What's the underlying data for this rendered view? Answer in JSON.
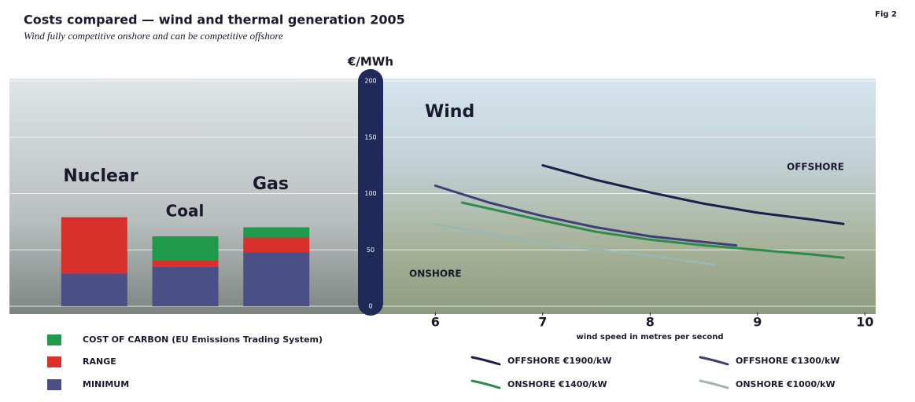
{
  "chart_data": [
    {
      "type": "bar",
      "title": "Costs compared — wind and thermal generation 2005",
      "subtitle": "Wind fully competitive onshore and can be competitive offshore",
      "figure_label": "Fig 2",
      "y_label": "€/MWh",
      "categories": [
        "Nuclear",
        "Coal",
        "Gas"
      ],
      "stacked": true,
      "series": [
        {
          "name": "MINIMUM",
          "color": "#4a4f86",
          "values": [
            29,
            35,
            48
          ]
        },
        {
          "name": "RANGE",
          "color": "#d9302c",
          "values": [
            50,
            6,
            13
          ]
        },
        {
          "name": "COST OF CARBON (EU Emissions Trading System)",
          "color": "#1e9a4a",
          "values": [
            0,
            21,
            9
          ]
        }
      ],
      "ylim": [
        0,
        200
      ],
      "yticks": [
        0,
        50,
        100,
        150,
        200
      ],
      "grid": true
    },
    {
      "type": "line",
      "x_label": "wind speed in metres per second",
      "annotations": [
        "Wind",
        "OFFSHORE",
        "ONSHORE"
      ],
      "series": [
        {
          "name": "OFFSHORE €1900/kW",
          "color": "#1c1f4a",
          "x": [
            7,
            7.5,
            8,
            8.5,
            9,
            9.5,
            9.8
          ],
          "values": [
            125,
            112,
            101,
            91,
            83,
            77,
            73
          ]
        },
        {
          "name": "OFFSHORE €1300/kW",
          "color": "#3d3f7a",
          "x": [
            6,
            6.5,
            7,
            7.5,
            8,
            8.5,
            8.8
          ],
          "values": [
            107,
            92,
            80,
            70,
            62,
            57,
            54
          ]
        },
        {
          "name": "ONSHORE €1400/kW",
          "color": "#2e8b4a",
          "x": [
            6.25,
            7,
            7.5,
            8,
            8.5,
            9,
            9.5,
            9.8
          ],
          "values": [
            92,
            76,
            66,
            59,
            54,
            50,
            46,
            43
          ]
        },
        {
          "name": "ONSHORE €1000/kW",
          "color": "#9ab8b0",
          "x": [
            6,
            6.5,
            7,
            7.5,
            8,
            8.6
          ],
          "values": [
            73,
            64,
            56,
            50,
            45,
            37
          ]
        }
      ],
      "xlim": [
        5.5,
        10.1
      ],
      "xticks": [
        6,
        7,
        8,
        9,
        10
      ],
      "ylim": [
        0,
        200
      ]
    }
  ]
}
